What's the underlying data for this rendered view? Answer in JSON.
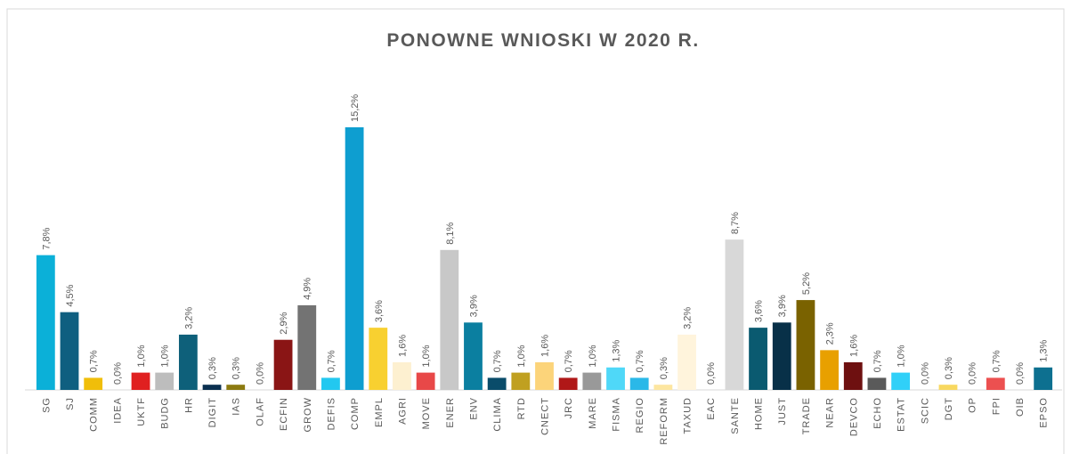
{
  "chart_data": {
    "type": "bar",
    "title": "PONOWNE WNIOSKI W 2020 R.",
    "categories": [
      "SG",
      "SJ",
      "COMM",
      "IDEA",
      "UKTF",
      "BUDG",
      "HR",
      "DIGIT",
      "IAS",
      "OLAF",
      "ECFIN",
      "GROW",
      "DEFIS",
      "COMP",
      "EMPL",
      "AGRI",
      "MOVE",
      "ENER",
      "ENV",
      "CLIMA",
      "RTD",
      "CNECT",
      "JRC",
      "MARE",
      "FISMA",
      "REGIO",
      "REFORM",
      "TAXUD",
      "EAC",
      "SANTE",
      "HOME",
      "JUST",
      "TRADE",
      "NEAR",
      "DEVCO",
      "ECHO",
      "ESTAT",
      "SCIC",
      "DGT",
      "OP",
      "FPI",
      "OIB",
      "EPSO"
    ],
    "values": [
      7.8,
      4.5,
      0.7,
      0.0,
      1.0,
      1.0,
      3.2,
      0.3,
      0.3,
      0.0,
      2.9,
      4.9,
      0.7,
      15.2,
      3.6,
      1.6,
      1.0,
      8.1,
      3.9,
      0.7,
      1.0,
      1.6,
      0.7,
      1.0,
      1.3,
      0.7,
      0.3,
      3.2,
      0.0,
      8.7,
      3.6,
      3.9,
      5.2,
      2.3,
      1.6,
      0.7,
      1.0,
      0.0,
      0.3,
      0.0,
      0.7,
      0.0,
      1.3
    ],
    "value_labels": [
      "7,8%",
      "4,5%",
      "0,7%",
      "0,0%",
      "1,0%",
      "1,0%",
      "3,2%",
      "0,3%",
      "0,3%",
      "0,0%",
      "2,9%",
      "4,9%",
      "0,7%",
      "15,2%",
      "3,6%",
      "1,6%",
      "1,0%",
      "8,1%",
      "3,9%",
      "0,7%",
      "1,0%",
      "1,6%",
      "0,7%",
      "1,0%",
      "1,3%",
      "0,7%",
      "0,3%",
      "3,2%",
      "0,0%",
      "8,7%",
      "3,6%",
      "3,9%",
      "5,2%",
      "2,3%",
      "1,6%",
      "0,7%",
      "1,0%",
      "0,0%",
      "0,3%",
      "0,0%",
      "0,7%",
      "0,0%",
      "1,3%"
    ],
    "colors": [
      "#0bb0d8",
      "#0f5f80",
      "#f0be0a",
      "#1f4e79",
      "#e02020",
      "#bdbdbd",
      "#0e607a",
      "#0a3050",
      "#8c7a10",
      "#7f6000",
      "#8a1515",
      "#737373",
      "#22c8f0",
      "#0e9ed0",
      "#f8d030",
      "#fdf0d0",
      "#e84848",
      "#c8c8c8",
      "#0b7fa0",
      "#0a4c6a",
      "#c0a020",
      "#fcd47a",
      "#b01818",
      "#999999",
      "#4fd8f8",
      "#2ab8e8",
      "#fde6a0",
      "#fff4dc",
      "#ffc000",
      "#d8d8d8",
      "#0a5a70",
      "#083048",
      "#7a6200",
      "#e8a000",
      "#6e1010",
      "#5a5a5a",
      "#30d0f8",
      "#4472c4",
      "#f8d860",
      "#a5a5a5",
      "#ec5050",
      "#255e91",
      "#0d7090"
    ]
  }
}
